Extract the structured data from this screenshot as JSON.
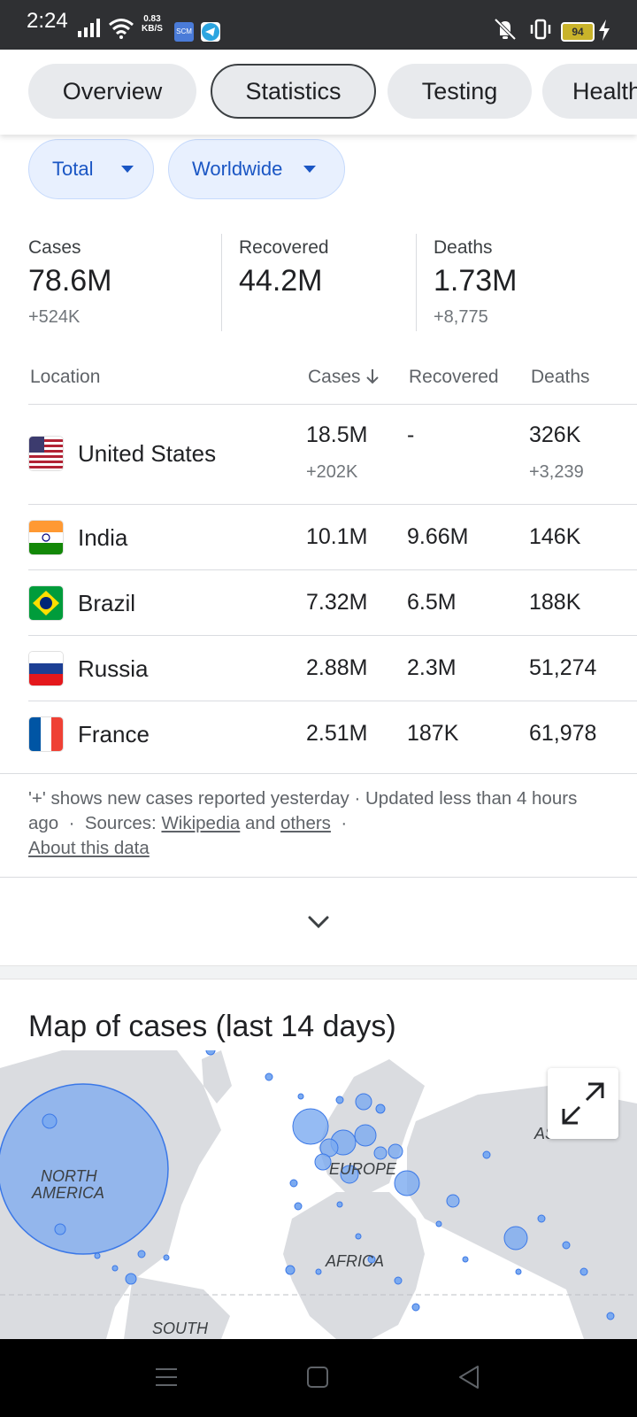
{
  "status_bar": {
    "time": "2:24",
    "net_speed_value": "0.83",
    "net_speed_unit": "KB/S",
    "app_badge": "SCM",
    "battery": "94"
  },
  "tabs": [
    {
      "label": "Overview",
      "active": false
    },
    {
      "label": "Statistics",
      "active": true
    },
    {
      "label": "Testing",
      "active": false
    },
    {
      "label": "Health",
      "active": false
    }
  ],
  "filters": {
    "measure": "Total",
    "region": "Worldwide"
  },
  "summary": {
    "cases": {
      "label": "Cases",
      "value": "78.6M",
      "delta": "+524K"
    },
    "recovered": {
      "label": "Recovered",
      "value": "44.2M"
    },
    "deaths": {
      "label": "Deaths",
      "value": "1.73M",
      "delta": "+8,775"
    }
  },
  "table": {
    "headers": {
      "location": "Location",
      "cases": "Cases",
      "recovered": "Recovered",
      "deaths": "Deaths"
    },
    "rows": [
      {
        "country": "United States",
        "cases": "18.5M",
        "cases_new": "+202K",
        "recovered": "-",
        "deaths": "326K",
        "deaths_new": "+3,239"
      },
      {
        "country": "India",
        "cases": "10.1M",
        "recovered": "9.66M",
        "deaths": "146K"
      },
      {
        "country": "Brazil",
        "cases": "7.32M",
        "recovered": "6.5M",
        "deaths": "188K"
      },
      {
        "country": "Russia",
        "cases": "2.88M",
        "recovered": "2.3M",
        "deaths": "51,274"
      },
      {
        "country": "France",
        "cases": "2.51M",
        "recovered": "187K",
        "deaths": "61,978"
      }
    ]
  },
  "footnote": {
    "text": "'+' shows new cases reported yesterday · Updated less than 4 hours ago",
    "sources_label": "Sources:",
    "source_link": "Wikipedia",
    "and_text": "and",
    "others_link": "others",
    "about_link": "About this data"
  },
  "map": {
    "title": "Map of cases (last 14 days)",
    "labels": [
      "NORTH",
      "AMERICA",
      "EUROPE",
      "AFRICA",
      "ASIA",
      "SOUTH"
    ]
  },
  "colors": {
    "accent": "#1a56c4",
    "chip_bg": "#e8f0fe",
    "bubble": "#7baaf0",
    "bubble_stroke": "#3b78e7",
    "land": "#dadce0"
  }
}
